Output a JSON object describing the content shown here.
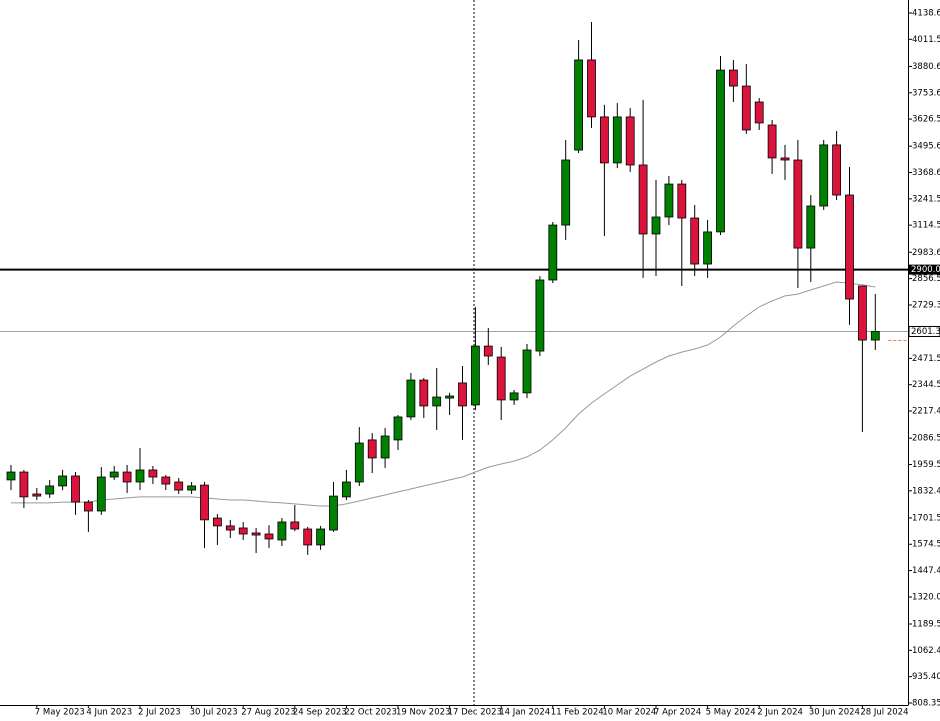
{
  "chart_data": {
    "type": "candlestick",
    "up_color": "#008000",
    "down_color": "#dc143c",
    "categories": [
      null,
      null,
      "7 May 2023",
      null,
      null,
      null,
      "4 Jun 2023",
      null,
      null,
      null,
      "2 Jul 2023",
      null,
      null,
      null,
      "30 Jul 2023",
      null,
      null,
      null,
      "27 Aug 2023",
      null,
      null,
      null,
      "24 Sep 2023",
      null,
      null,
      null,
      "22 Oct 2023",
      null,
      null,
      null,
      "19 Nov 2023",
      null,
      null,
      null,
      "17 Dec 2023",
      null,
      null,
      null,
      "14 Jan 2024",
      null,
      null,
      null,
      "11 Feb 2024",
      null,
      null,
      null,
      "10 Mar 2024",
      null,
      null,
      null,
      "7 Apr 2024",
      null,
      null,
      null,
      "5 May 2024",
      null,
      null,
      null,
      "2 Jun 2024",
      null,
      null,
      null,
      "30 Jun 2024",
      null,
      null,
      null,
      "28 Jul 2024",
      null
    ],
    "open": [
      1885,
      1923,
      1817,
      1817,
      1856,
      1904,
      1778,
      1735,
      1899,
      1923,
      1875,
      1933,
      1899,
      1875,
      1836,
      1860,
      1701,
      1663,
      1653,
      1629,
      1624,
      1595,
      1682,
      1648,
      1571,
      1643,
      1803,
      1875,
      2078,
      1991,
      2078,
      2189,
      2367,
      2242,
      2280,
      2353,
      2247,
      2531,
      2478,
      2271,
      2305,
      2507,
      2850,
      3115,
      3477,
      3912,
      3637,
      3415,
      3637,
      3405,
      3072,
      3154,
      3313,
      3149,
      2927,
      3082,
      3863,
      3786,
      3709,
      3598,
      3439,
      3429,
      3004,
      3207,
      3502,
      3260,
      2821,
      2560
    ],
    "high": [
      1957,
      1933,
      1846,
      1885,
      1933,
      1923,
      1788,
      1947,
      1952,
      1957,
      2039,
      1952,
      1909,
      1894,
      1875,
      1875,
      1720,
      1692,
      1682,
      1653,
      1667,
      1701,
      1764,
      1658,
      1663,
      1875,
      1933,
      2140,
      2111,
      2136,
      2198,
      2401,
      2377,
      2425,
      2305,
      2435,
      2720,
      2618,
      2527,
      2319,
      2541,
      2869,
      3130,
      3526,
      4008,
      4095,
      3695,
      3704,
      3680,
      3719,
      3333,
      3352,
      3333,
      3212,
      3140,
      3931,
      3912,
      3892,
      3728,
      3622,
      3502,
      3526,
      3260,
      3526,
      3569,
      3395,
      2821,
      2782
    ],
    "low": [
      1836,
      1749,
      1788,
      1798,
      1836,
      1716,
      1634,
      1716,
      1885,
      1822,
      1836,
      1865,
      1836,
      1817,
      1817,
      1556,
      1571,
      1605,
      1595,
      1532,
      1556,
      1566,
      1638,
      1523,
      1547,
      1634,
      1788,
      1856,
      1918,
      1943,
      2029,
      2174,
      2184,
      2126,
      2198,
      2078,
      2222,
      2440,
      2174,
      2247,
      2280,
      2483,
      2835,
      3043,
      3463,
      3584,
      3062,
      3390,
      3371,
      2860,
      2869,
      3115,
      2821,
      2869,
      2860,
      3067,
      3709,
      3555,
      3574,
      3362,
      3333,
      2811,
      2840,
      3188,
      3236,
      2633,
      2116,
      2512
    ],
    "close": [
      1923,
      1803,
      1807,
      1856,
      1904,
      1778,
      1735,
      1899,
      1923,
      1875,
      1933,
      1899,
      1865,
      1836,
      1856,
      1692,
      1663,
      1643,
      1624,
      1619,
      1600,
      1682,
      1648,
      1571,
      1648,
      1807,
      1875,
      2063,
      1991,
      2097,
      2189,
      2367,
      2242,
      2285,
      2290,
      2242,
      2531,
      2483,
      2271,
      2305,
      2512,
      2850,
      3115,
      3429,
      3912,
      3637,
      3415,
      3637,
      3405,
      3072,
      3154,
      3313,
      3149,
      2927,
      3082,
      3863,
      3786,
      3574,
      3608,
      3439,
      3429,
      3004,
      3207,
      3502,
      3260,
      2758,
      2560,
      2601.39
    ],
    "ma": {
      "color": "#999999",
      "values": [
        1774,
        1774,
        1774,
        1774,
        1778,
        1778,
        1778,
        1788,
        1793,
        1798,
        1803,
        1803,
        1803,
        1803,
        1803,
        1798,
        1793,
        1788,
        1788,
        1783,
        1778,
        1774,
        1769,
        1764,
        1759,
        1759,
        1769,
        1783,
        1798,
        1812,
        1827,
        1841,
        1856,
        1870,
        1885,
        1899,
        1923,
        1947,
        1962,
        1976,
        1996,
        2029,
        2078,
        2136,
        2203,
        2256,
        2300,
        2343,
        2386,
        2420,
        2454,
        2483,
        2502,
        2517,
        2536,
        2575,
        2628,
        2676,
        2720,
        2749,
        2773,
        2782,
        2802,
        2821,
        2840,
        2835,
        2826,
        2816
      ]
    },
    "hline": {
      "value": 2900,
      "label": "2900.00",
      "color": "#000000"
    },
    "last_price": {
      "value": 2601.39,
      "label": "2601.39",
      "color": "#a0a0a0"
    },
    "ylim": [
      798.6,
      4201.3
    ],
    "yticks": [
      {
        "value": 808.35,
        "label": "808.35"
      },
      {
        "value": 935.4,
        "label": "935.40"
      },
      {
        "value": 1062.45,
        "label": "1062.45"
      },
      {
        "value": 1189.5,
        "label": "1189.50"
      },
      {
        "value": 1320,
        "label": "1320.00"
      },
      {
        "value": 1447.45,
        "label": "1447.45"
      },
      {
        "value": 1574.5,
        "label": "1574.50"
      },
      {
        "value": 1701.55,
        "label": "1701.55"
      },
      {
        "value": 1832.45,
        "label": "1832.45"
      },
      {
        "value": 1959.5,
        "label": "1959.50"
      },
      {
        "value": 2086.55,
        "label": "2086.55"
      },
      {
        "value": 2217.45,
        "label": "2217.45"
      },
      {
        "value": 2344.5,
        "label": "2344.50"
      },
      {
        "value": 2471.55,
        "label": "2471.55"
      },
      {
        "value": 2729.3,
        "label": "2729.30"
      },
      {
        "value": 2856.55,
        "label": "2856.55"
      },
      {
        "value": 2983.6,
        "label": "2983.60"
      },
      {
        "value": 3114.55,
        "label": "3114.55"
      },
      {
        "value": 3241.5,
        "label": "3241.50"
      },
      {
        "value": 3368.6,
        "label": "3368.60"
      },
      {
        "value": 3495.65,
        "label": "3495.65"
      },
      {
        "value": 3626.55,
        "label": "3626.55"
      },
      {
        "value": 3753.6,
        "label": "3753.60"
      },
      {
        "value": 3880.6,
        "label": "3880.60"
      },
      {
        "value": 4011.55,
        "label": "4011.55"
      },
      {
        "value": 4138.6,
        "label": "4138.60"
      }
    ]
  }
}
